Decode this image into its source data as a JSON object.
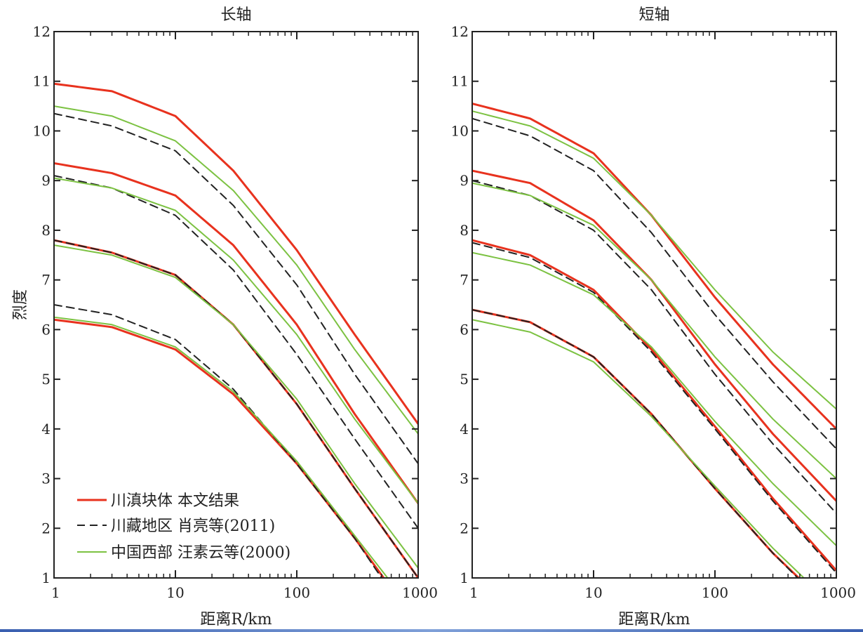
{
  "chart_data": [
    {
      "type": "line",
      "title": "长轴",
      "xlabel": "距离R/km",
      "ylabel": "烈度",
      "xscale": "log",
      "xlim": [
        1,
        1000
      ],
      "ylim": [
        1,
        12
      ],
      "xticks": [
        "1",
        "10",
        "100",
        "1000"
      ],
      "yticks": [
        "1",
        "2",
        "3",
        "4",
        "5",
        "6",
        "7",
        "8",
        "9",
        "10",
        "11",
        "12"
      ],
      "legend_position": "bottom-left",
      "series": [
        {
          "name": "川滇块体 本文结果",
          "color": "#e8321e",
          "dash": "solid",
          "width": 3,
          "curves": [
            {
              "x": [
                1,
                3,
                10,
                30,
                100,
                300,
                1000
              ],
              "y": [
                10.95,
                10.8,
                10.3,
                9.2,
                7.6,
                5.9,
                4.1
              ]
            },
            {
              "x": [
                1,
                3,
                10,
                30,
                100,
                300,
                1000
              ],
              "y": [
                9.35,
                9.15,
                8.7,
                7.7,
                6.1,
                4.3,
                2.5
              ]
            },
            {
              "x": [
                1,
                3,
                10,
                30,
                100,
                300,
                1000
              ],
              "y": [
                7.8,
                7.55,
                7.1,
                6.1,
                4.5,
                2.8,
                1.0
              ]
            },
            {
              "x": [
                1,
                3,
                10,
                30,
                100,
                300,
                520
              ],
              "y": [
                6.2,
                6.05,
                5.6,
                4.7,
                3.3,
                1.8,
                1.0
              ]
            }
          ]
        },
        {
          "name": "川藏地区 肖亮等(2011)",
          "color": "#222222",
          "dash": "dashed",
          "width": 2,
          "curves": [
            {
              "x": [
                1,
                3,
                10,
                30,
                100,
                300,
                1000
              ],
              "y": [
                10.35,
                10.1,
                9.6,
                8.5,
                6.9,
                5.1,
                3.3
              ]
            },
            {
              "x": [
                1,
                3,
                10,
                30,
                100,
                300,
                1000
              ],
              "y": [
                9.1,
                8.85,
                8.3,
                7.2,
                5.5,
                3.8,
                2.0
              ]
            },
            {
              "x": [
                1,
                3,
                10,
                30,
                100,
                300,
                1000
              ],
              "y": [
                7.8,
                7.55,
                7.1,
                6.1,
                4.5,
                2.8,
                1.0
              ]
            },
            {
              "x": [
                1,
                3,
                10,
                30,
                100,
                300,
                500
              ],
              "y": [
                6.5,
                6.3,
                5.8,
                4.8,
                3.3,
                1.8,
                1.0
              ]
            }
          ]
        },
        {
          "name": "中国西部 汪素云等(2000)",
          "color": "#7cc242",
          "dash": "solid",
          "width": 2,
          "curves": [
            {
              "x": [
                1,
                3,
                10,
                30,
                100,
                300,
                1000
              ],
              "y": [
                10.5,
                10.3,
                9.8,
                8.8,
                7.3,
                5.6,
                3.9
              ]
            },
            {
              "x": [
                1,
                3,
                10,
                30,
                100,
                300,
                1000
              ],
              "y": [
                9.05,
                8.85,
                8.4,
                7.4,
                5.9,
                4.2,
                2.5
              ]
            },
            {
              "x": [
                1,
                3,
                10,
                30,
                100,
                300,
                1000
              ],
              "y": [
                7.7,
                7.5,
                7.05,
                6.1,
                4.6,
                2.9,
                1.2
              ]
            },
            {
              "x": [
                1,
                3,
                10,
                30,
                100,
                300,
                560
              ],
              "y": [
                6.25,
                6.1,
                5.65,
                4.75,
                3.35,
                1.85,
                1.0
              ]
            }
          ]
        }
      ]
    },
    {
      "type": "line",
      "title": "短轴",
      "xlabel": "距离R/km",
      "ylabel": "",
      "xscale": "log",
      "xlim": [
        1,
        1000
      ],
      "ylim": [
        1,
        12
      ],
      "xticks": [
        "1",
        "10",
        "100",
        "1000"
      ],
      "yticks": [
        "1",
        "2",
        "3",
        "4",
        "5",
        "6",
        "7",
        "8",
        "9",
        "10",
        "11",
        "12"
      ],
      "series": [
        {
          "name": "川滇块体 本文结果",
          "color": "#e8321e",
          "dash": "solid",
          "width": 3,
          "curves": [
            {
              "x": [
                1,
                3,
                10,
                30,
                100,
                300,
                1000
              ],
              "y": [
                10.55,
                10.25,
                9.55,
                8.3,
                6.65,
                5.3,
                4.0
              ]
            },
            {
              "x": [
                1,
                3,
                10,
                30,
                100,
                300,
                1000
              ],
              "y": [
                9.2,
                8.95,
                8.2,
                7.0,
                5.3,
                3.9,
                2.55
              ]
            },
            {
              "x": [
                1,
                3,
                10,
                30,
                100,
                300,
                1000
              ],
              "y": [
                7.8,
                7.5,
                6.8,
                5.6,
                4.05,
                2.6,
                1.15
              ]
            },
            {
              "x": [
                1,
                3,
                10,
                30,
                100,
                300,
                490
              ],
              "y": [
                6.4,
                6.15,
                5.45,
                4.3,
                2.8,
                1.5,
                1.0
              ]
            }
          ]
        },
        {
          "name": "川藏地区 肖亮等(2011)",
          "color": "#222222",
          "dash": "dashed",
          "width": 2,
          "curves": [
            {
              "x": [
                1,
                3,
                10,
                30,
                100,
                300,
                1000
              ],
              "y": [
                10.25,
                9.9,
                9.2,
                7.95,
                6.3,
                4.95,
                3.6
              ]
            },
            {
              "x": [
                1,
                3,
                10,
                30,
                100,
                300,
                1000
              ],
              "y": [
                9.0,
                8.7,
                8.0,
                6.8,
                5.1,
                3.7,
                2.3
              ]
            },
            {
              "x": [
                1,
                3,
                10,
                30,
                100,
                300,
                1000
              ],
              "y": [
                7.75,
                7.45,
                6.75,
                5.55,
                4.0,
                2.55,
                1.1
              ]
            },
            {
              "x": [
                1,
                3,
                10,
                30,
                100,
                300,
                480
              ],
              "y": [
                6.4,
                6.15,
                5.45,
                4.3,
                2.8,
                1.5,
                1.0
              ]
            }
          ]
        },
        {
          "name": "中国西部 汪素云等(2000)",
          "color": "#7cc242",
          "dash": "solid",
          "width": 2,
          "curves": [
            {
              "x": [
                1,
                3,
                10,
                30,
                100,
                300,
                1000
              ],
              "y": [
                10.4,
                10.1,
                9.45,
                8.3,
                6.8,
                5.55,
                4.4
              ]
            },
            {
              "x": [
                1,
                3,
                10,
                30,
                100,
                300,
                1000
              ],
              "y": [
                8.95,
                8.7,
                8.1,
                7.0,
                5.45,
                4.2,
                3.0
              ]
            },
            {
              "x": [
                1,
                3,
                10,
                30,
                100,
                300,
                1000
              ],
              "y": [
                7.55,
                7.3,
                6.7,
                5.65,
                4.15,
                2.9,
                1.65
              ]
            },
            {
              "x": [
                1,
                3,
                10,
                30,
                100,
                300,
                540
              ],
              "y": [
                6.2,
                5.95,
                5.35,
                4.25,
                2.85,
                1.6,
                1.0
              ]
            }
          ]
        }
      ]
    }
  ]
}
